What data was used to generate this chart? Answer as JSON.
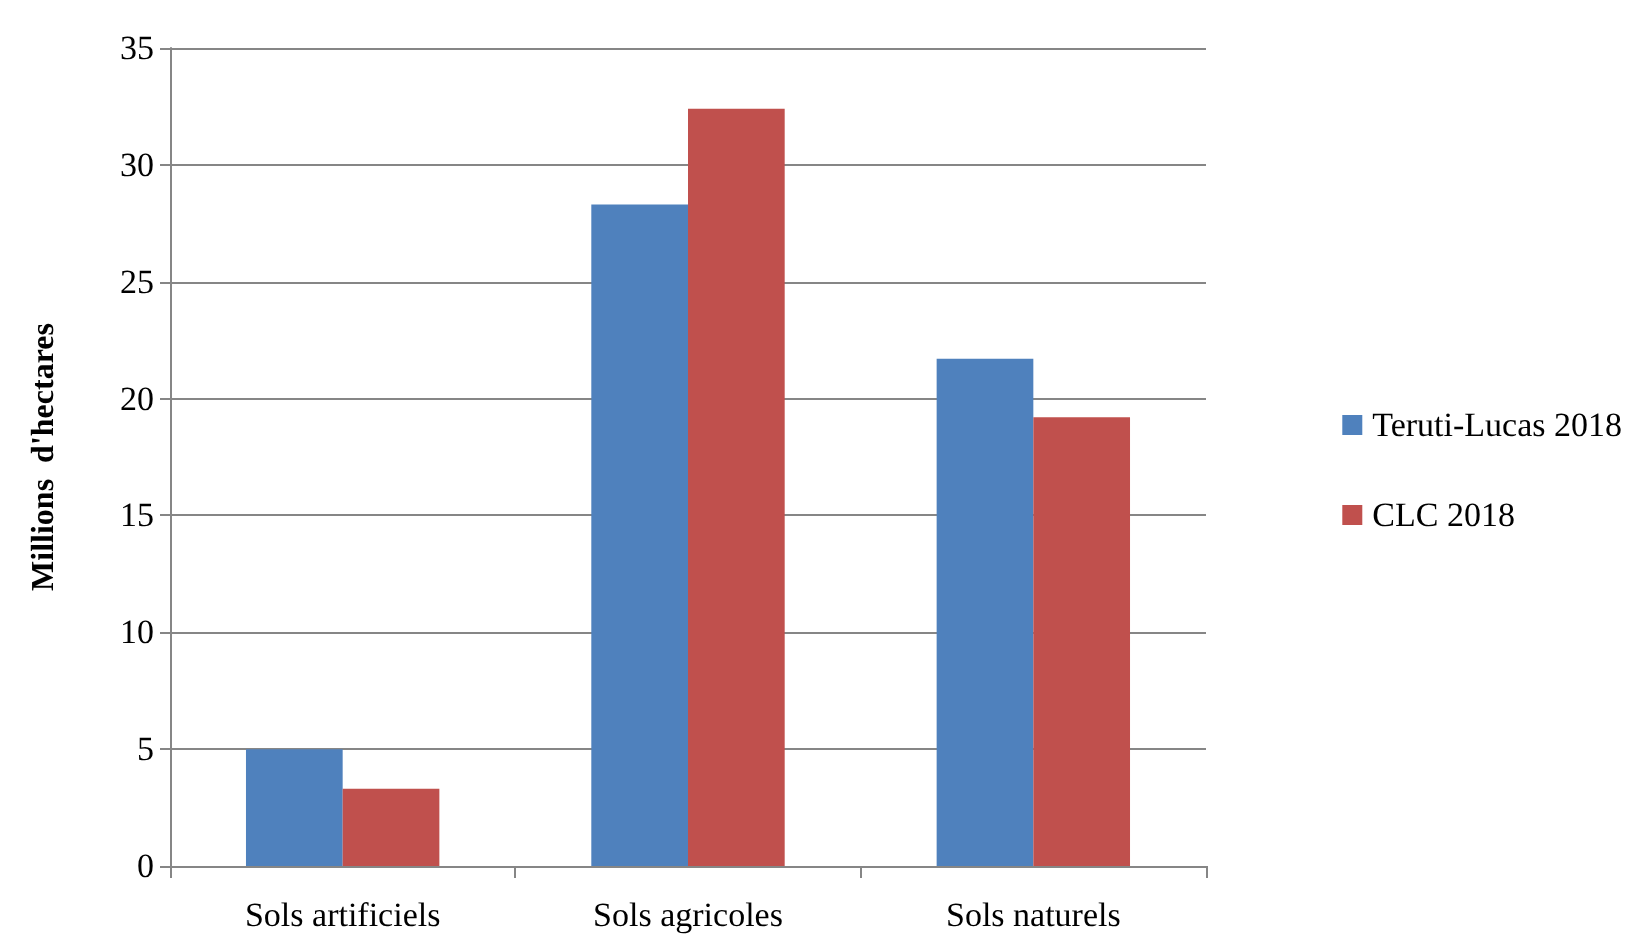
{
  "chart_data": {
    "type": "bar",
    "ylabel": "Millions  d'hectares",
    "categories": [
      "Sols artificiels",
      "Sols agricoles",
      "Sols naturels"
    ],
    "series": [
      {
        "name": "Teruti-Lucas 2018",
        "color": "#4f81bd",
        "values": [
          5.0,
          28.3,
          21.7
        ]
      },
      {
        "name": "CLC 2018",
        "color": "#c0504d",
        "values": [
          3.3,
          32.4,
          19.2
        ]
      }
    ],
    "ylim": [
      0,
      35
    ],
    "yticks": [
      0,
      5,
      10,
      15,
      20,
      25,
      30,
      35
    ],
    "grid": "y",
    "legend": "right"
  }
}
